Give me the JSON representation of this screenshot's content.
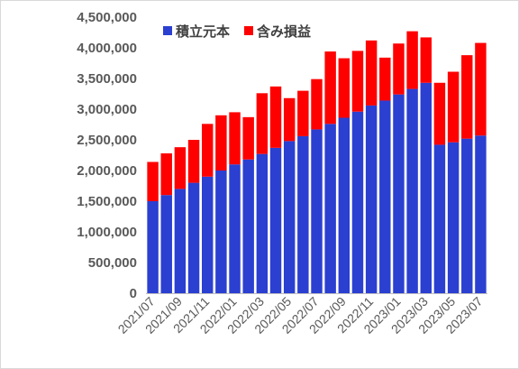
{
  "colors": {
    "principal": "#2b3fd1",
    "gain": "#ff0000",
    "axis": "#bfbfbf",
    "text": "#595959"
  },
  "chart_data": {
    "type": "bar",
    "stacked": true,
    "grid": false,
    "legend_position": "top-left",
    "categories": [
      "2021/07",
      "2021/08",
      "2021/09",
      "2021/10",
      "2021/11",
      "2021/12",
      "2022/01",
      "2022/02",
      "2022/03",
      "2022/04",
      "2022/05",
      "2022/06",
      "2022/07",
      "2022/08",
      "2022/09",
      "2022/10",
      "2022/11",
      "2022/12",
      "2023/01",
      "2023/02",
      "2023/03",
      "2023/04",
      "2023/05",
      "2023/06",
      "2023/07"
    ],
    "tick_labels": [
      "2021/07",
      "2021/09",
      "2021/11",
      "2022/01",
      "2022/03",
      "2022/05",
      "2022/07",
      "2022/09",
      "2022/11",
      "2023/01",
      "2023/03",
      "2023/05",
      "2023/07"
    ],
    "series": [
      {
        "name": "積立元本",
        "color": "#2b3fd1",
        "values": [
          1500000,
          1600000,
          1700000,
          1800000,
          1900000,
          2000000,
          2100000,
          2180000,
          2270000,
          2370000,
          2480000,
          2560000,
          2670000,
          2760000,
          2860000,
          2960000,
          3060000,
          3140000,
          3240000,
          3330000,
          3430000,
          2420000,
          2460000,
          2520000,
          2570000
        ]
      },
      {
        "name": "含み損益",
        "color": "#ff0000",
        "values": [
          640000,
          680000,
          680000,
          700000,
          860000,
          900000,
          850000,
          690000,
          990000,
          1000000,
          700000,
          740000,
          820000,
          1180000,
          970000,
          990000,
          1060000,
          700000,
          830000,
          940000,
          740000,
          1010000,
          1150000,
          1360000,
          1510000
        ]
      }
    ],
    "ylim": [
      0,
      4500000
    ],
    "yticks": [
      0,
      500000,
      1000000,
      1500000,
      2000000,
      2500000,
      3000000,
      3500000,
      4000000,
      4500000
    ],
    "ytick_labels": [
      "0",
      "500,000",
      "1,000,000",
      "1,500,000",
      "2,000,000",
      "2,500,000",
      "3,000,000",
      "3,500,000",
      "4,000,000",
      "4,500,000"
    ]
  }
}
